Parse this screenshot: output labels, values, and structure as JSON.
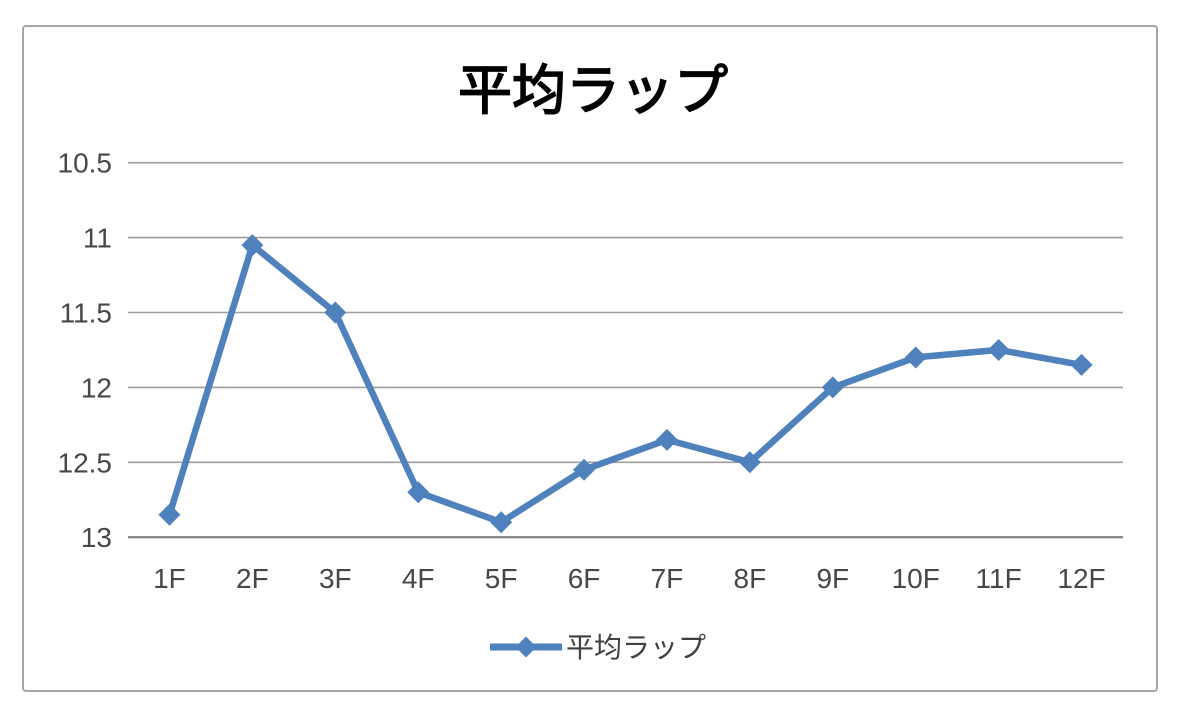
{
  "chart": {
    "title": "平均ラップ",
    "legend_label": "平均ラップ"
  },
  "chart_data": {
    "type": "line",
    "title": "平均ラップ",
    "categories": [
      "1F",
      "2F",
      "3F",
      "4F",
      "5F",
      "6F",
      "7F",
      "8F",
      "9F",
      "10F",
      "11F",
      "12F"
    ],
    "series": [
      {
        "name": "平均ラップ",
        "values": [
          12.85,
          11.05,
          11.5,
          12.7,
          12.9,
          12.55,
          12.35,
          12.5,
          12.0,
          11.8,
          11.75,
          11.85
        ]
      }
    ],
    "xlabel": "",
    "ylabel": "",
    "y_ticks": [
      10.5,
      11,
      11.5,
      12,
      12.5,
      13
    ],
    "ylim": [
      10.5,
      13
    ],
    "y_axis_reversed": true,
    "grid": "horizontal",
    "legend_position": "bottom",
    "marker": "diamond",
    "colors": {
      "series": "#4F81BD",
      "gridline": "#9e9e9e",
      "axis_line": "#7f7f7f",
      "tick_label": "#474747",
      "title": "#000000",
      "legend_text": "#3f3f3f",
      "border": "#a6a6a6",
      "background": "#ffffff"
    }
  }
}
